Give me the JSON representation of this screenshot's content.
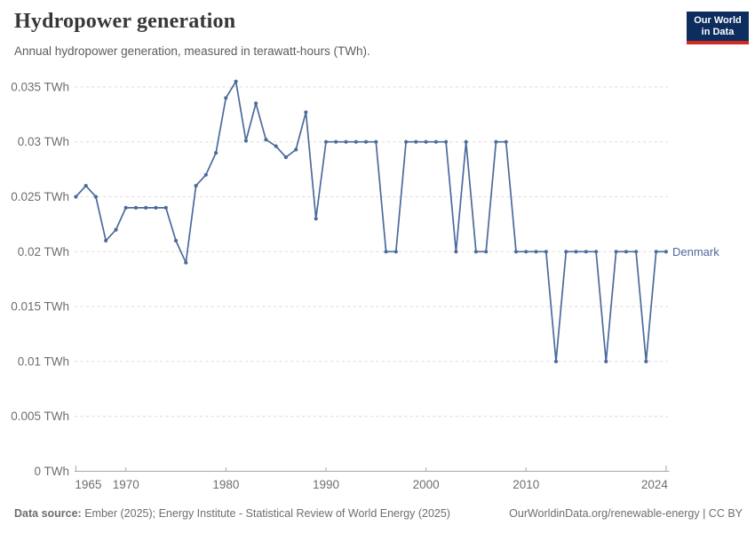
{
  "header": {
    "title": "Hydropower generation",
    "subtitle": "Annual hydropower generation, measured in terawatt-hours (TWh).",
    "logo": {
      "line1": "Our World",
      "line2": "in Data",
      "bg_color": "#0c2d5e",
      "stripe_color": "#d12a1f"
    }
  },
  "chart_data": {
    "type": "line",
    "title": "Hydropower generation",
    "xlabel": "",
    "ylabel": "TWh",
    "xlim": [
      1965,
      2024
    ],
    "ylim": [
      0,
      0.035
    ],
    "grid": "horizontal-dashed",
    "legend_position": "end-of-line-label",
    "x": [
      1965,
      1966,
      1967,
      1968,
      1969,
      1970,
      1971,
      1972,
      1973,
      1974,
      1975,
      1976,
      1977,
      1978,
      1979,
      1980,
      1981,
      1982,
      1983,
      1984,
      1985,
      1986,
      1987,
      1988,
      1989,
      1990,
      1991,
      1992,
      1993,
      1994,
      1995,
      1996,
      1997,
      1998,
      1999,
      2000,
      2001,
      2002,
      2003,
      2004,
      2005,
      2006,
      2007,
      2008,
      2009,
      2010,
      2011,
      2012,
      2013,
      2014,
      2015,
      2016,
      2017,
      2018,
      2019,
      2020,
      2021,
      2022,
      2023,
      2024
    ],
    "series": [
      {
        "name": "Denmark",
        "color": "#4c6a9c",
        "values": [
          0.025,
          0.026,
          0.025,
          0.021,
          0.022,
          0.024,
          0.024,
          0.024,
          0.024,
          0.024,
          0.021,
          0.019,
          0.026,
          0.027,
          0.029,
          0.034,
          0.0355,
          0.0301,
          0.0335,
          0.0302,
          0.0296,
          0.0286,
          0.0293,
          0.0327,
          0.023,
          0.03,
          0.03,
          0.03,
          0.03,
          0.03,
          0.03,
          0.02,
          0.02,
          0.03,
          0.03,
          0.03,
          0.03,
          0.03,
          0.02,
          0.03,
          0.02,
          0.02,
          0.03,
          0.03,
          0.02,
          0.02,
          0.02,
          0.02,
          0.01,
          0.02,
          0.02,
          0.02,
          0.02,
          0.01,
          0.02,
          0.02,
          0.02,
          0.01,
          0.02,
          0.02
        ]
      }
    ],
    "y_ticks": [
      {
        "value": 0,
        "label": "0 TWh"
      },
      {
        "value": 0.005,
        "label": "0.005 TWh"
      },
      {
        "value": 0.01,
        "label": "0.01 TWh"
      },
      {
        "value": 0.015,
        "label": "0.015 TWh"
      },
      {
        "value": 0.02,
        "label": "0.02 TWh"
      },
      {
        "value": 0.025,
        "label": "0.025 TWh"
      },
      {
        "value": 0.03,
        "label": "0.03 TWh"
      },
      {
        "value": 0.035,
        "label": "0.035 TWh"
      }
    ],
    "x_ticks": [
      {
        "value": 1965,
        "label": "1965"
      },
      {
        "value": 1970,
        "label": "1970"
      },
      {
        "value": 1980,
        "label": "1980"
      },
      {
        "value": 1990,
        "label": "1990"
      },
      {
        "value": 2000,
        "label": "2000"
      },
      {
        "value": 2010,
        "label": "2010"
      },
      {
        "value": 2024,
        "label": "2024"
      }
    ],
    "colors": {
      "line": "#4c6a9c",
      "grid": "#dcdcdc",
      "axis": "#a5a5a5",
      "tick_text": "#6e6e6e"
    }
  },
  "footer": {
    "source_label": "Data source:",
    "source_text": "Ember (2025); Energy Institute - Statistical Review of World Energy (2025)",
    "link_text": "OurWorldinData.org/renewable-energy | CC BY"
  }
}
